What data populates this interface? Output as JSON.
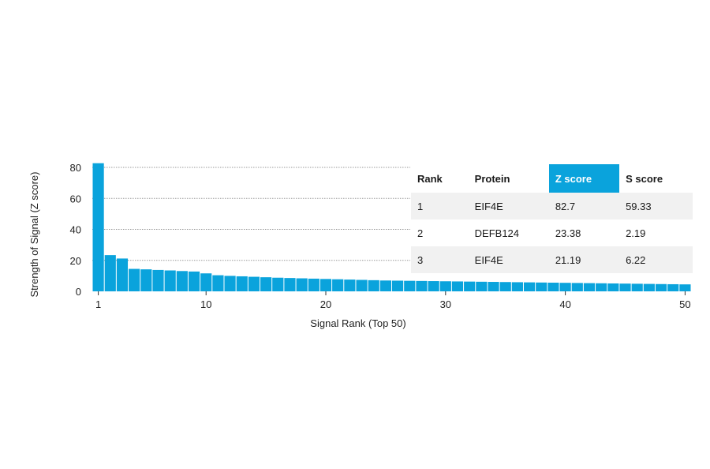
{
  "chart_data": {
    "type": "bar",
    "xlabel": "Signal Rank (Top 50)",
    "ylabel": "Strength of Signal (Z score)",
    "ylim": [
      0,
      80
    ],
    "yticks": [
      0,
      20,
      40,
      60,
      80
    ],
    "xticks": [
      1,
      10,
      20,
      30,
      40,
      50
    ],
    "grid": "horizontal dotted",
    "bar_color": "#0aa3dc",
    "categories": [
      1,
      2,
      3,
      4,
      5,
      6,
      7,
      8,
      9,
      10,
      11,
      12,
      13,
      14,
      15,
      16,
      17,
      18,
      19,
      20,
      21,
      22,
      23,
      24,
      25,
      26,
      27,
      28,
      29,
      30,
      31,
      32,
      33,
      34,
      35,
      36,
      37,
      38,
      39,
      40,
      41,
      42,
      43,
      44,
      45,
      46,
      47,
      48,
      49,
      50
    ],
    "values": [
      82.7,
      23.38,
      21.19,
      14.5,
      14.2,
      13.8,
      13.5,
      13.1,
      12.8,
      11.6,
      10.4,
      10.0,
      9.7,
      9.4,
      9.1,
      8.8,
      8.6,
      8.4,
      8.2,
      8.0,
      7.8,
      7.6,
      7.4,
      7.2,
      7.0,
      6.9,
      6.8,
      6.7,
      6.6,
      6.5,
      6.4,
      6.3,
      6.2,
      6.1,
      6.0,
      5.9,
      5.8,
      5.7,
      5.6,
      5.5,
      5.4,
      5.3,
      5.2,
      5.1,
      5.0,
      4.9,
      4.8,
      4.7,
      4.6,
      4.5
    ]
  },
  "table": {
    "headers": [
      "Rank",
      "Protein",
      "Z score",
      "S score"
    ],
    "highlight_header": "Z score",
    "highlight_color": "#0aa3dc",
    "rows": [
      [
        "1",
        "EIF4E",
        "82.7",
        "59.33"
      ],
      [
        "2",
        "DEFB124",
        "23.38",
        "2.19"
      ],
      [
        "3",
        "EIF4E",
        "21.19",
        "6.22"
      ]
    ]
  }
}
